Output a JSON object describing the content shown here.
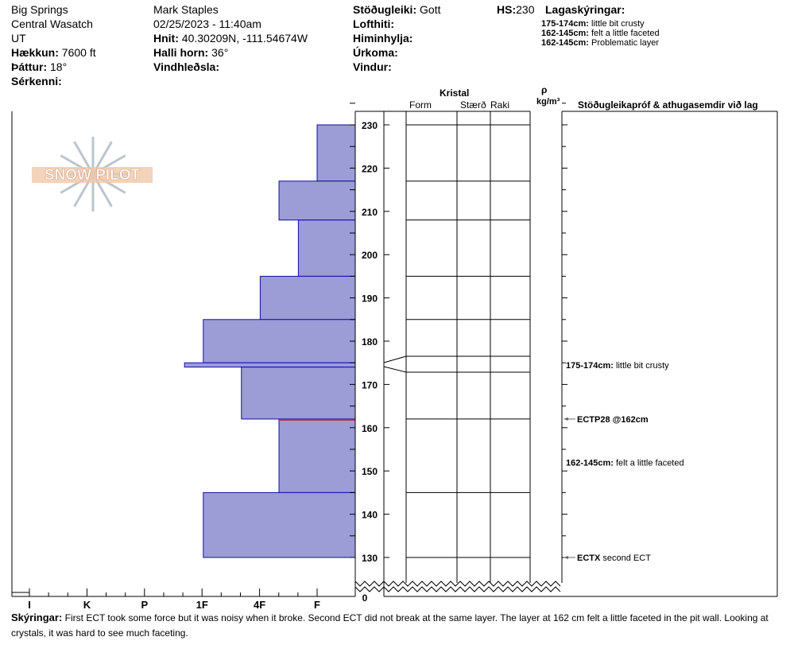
{
  "header": {
    "location": "Big Springs",
    "range": "Central Wasatch",
    "state": "UT",
    "elevation_label": "Hækkun:",
    "elevation": "7600 ft",
    "aspect_label": "Þáttur:",
    "aspect": "18°",
    "features_label": "Sérkenni:",
    "observer": "Mark Staples",
    "datetime": "02/25/2023 - 11:40am",
    "coords_label": "Hnit:",
    "coords": "40.30209N, -111.54674W",
    "slope_label": "Halli horn:",
    "slope": "36°",
    "wind_loading_label": "Vindhleðsla:",
    "stability_label": "Stöðugleiki:",
    "stability": "Gott",
    "air_temp_label": "Lofthiti:",
    "sky_label": "Himinhylja:",
    "precip_label": "Úrkoma:",
    "wind_label": "Vindur:",
    "hs_label": "HS:",
    "hs": "230",
    "layer_notes_label": "Lagaskýringar:",
    "layer_notes": [
      {
        "range": "175-174cm:",
        "text": "little bit crusty"
      },
      {
        "range": "162-145cm:",
        "text": "felt a little faceted"
      },
      {
        "range": "162-145cm:",
        "text": "Problematic layer"
      }
    ]
  },
  "columns": {
    "crystal": "Kristal",
    "form": "Form",
    "size": "Stærð",
    "moisture": "Raki",
    "rho": "ρ",
    "density_unit": "kg/m³",
    "tests": "Stöðugleikapróf & athugasemdir við lag"
  },
  "chart_data": {
    "type": "bar",
    "y_ticks": [
      130,
      140,
      150,
      160,
      170,
      180,
      190,
      200,
      210,
      220,
      230
    ],
    "y_zero_label": "0",
    "ylim": [
      130,
      230
    ],
    "hardness_labels": [
      "I",
      "K",
      "P",
      "1F",
      "4F",
      "F"
    ],
    "layers": [
      {
        "top": 230,
        "bottom": 217,
        "hardness": "F"
      },
      {
        "top": 217,
        "bottom": 208,
        "hardness": "4F-"
      },
      {
        "top": 208,
        "bottom": 195,
        "hardness": "F+"
      },
      {
        "top": 195,
        "bottom": 185,
        "hardness": "4F"
      },
      {
        "top": 185,
        "bottom": 175,
        "hardness": "1F"
      },
      {
        "top": 175,
        "bottom": 174,
        "hardness": "1F+"
      },
      {
        "top": 174,
        "bottom": 162,
        "hardness": "4F+"
      },
      {
        "top": 162,
        "bottom": 145,
        "hardness": "4F-"
      },
      {
        "top": 145,
        "bottom": 130,
        "hardness": "1F"
      }
    ],
    "hardness_values": {
      "F": 1,
      "F+": 1.33,
      "4F-": 1.67,
      "4F": 2,
      "4F+": 2.33,
      "1F-": 2.67,
      "1F": 3,
      "1F+": 3.33
    },
    "problem_layer_depth": 162,
    "colors": {
      "fill": "#9c9cd6",
      "edge": "#1010a0",
      "problem": "#c0282c"
    }
  },
  "annotations": [
    {
      "depth": 174.5,
      "bold": "175-174cm:",
      "text": "little bit crusty",
      "arrow": false
    },
    {
      "depth": 162,
      "bold": "ECTP28 @162cm",
      "text": "",
      "arrow": true
    },
    {
      "depth": 152,
      "bold": "162-145cm:",
      "text": "felt a little faceted",
      "arrow": false
    },
    {
      "depth": 130,
      "bold": "ECTX",
      "text": "second ECT",
      "arrow": true
    }
  ],
  "comments": {
    "label": "Skýringar:",
    "text": "First ECT took some force but it was noisy when it broke. Second ECT did not break at the same layer. The layer at 162 cm felt a little faceted in the pit wall. Looking at crystals, it was hard to see much faceting."
  },
  "logo": "SNOW PILOT"
}
